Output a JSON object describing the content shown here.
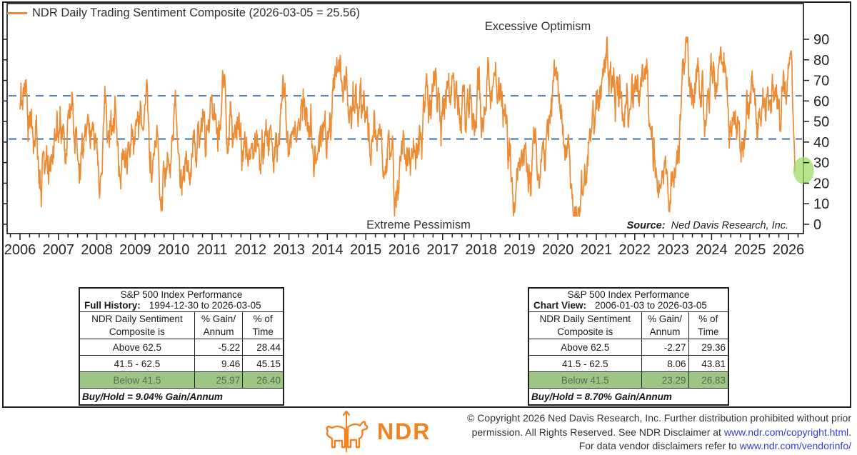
{
  "chart_data": {
    "type": "line",
    "legend_label": "NDR Daily Trading Sentiment Composite (2026-03-05 = 25.56)",
    "line_color": "#ED8B33",
    "annotations": {
      "top": "Excessive Optimism",
      "bottom": "Extreme Pessimism",
      "source_label": "Source:",
      "source_text": "Ned Davis Research, Inc."
    },
    "threshold_lines": {
      "values": [
        62.5,
        41.5
      ],
      "color": "#4878AD",
      "style": "dashed"
    },
    "x_axis": {
      "ticks": [
        2006,
        2007,
        2008,
        2009,
        2010,
        2011,
        2012,
        2013,
        2014,
        2015,
        2016,
        2017,
        2018,
        2019,
        2020,
        2021,
        2022,
        2023,
        2024,
        2025,
        2026
      ],
      "minor_tick_interval_years": 0.25
    },
    "y_axis": {
      "ticks": [
        0,
        10,
        20,
        30,
        40,
        50,
        60,
        70,
        80,
        90
      ],
      "labels_side": "right"
    },
    "last_point": {
      "date": "2026-03-05",
      "value": 25.56
    },
    "highlight_ellipse": {
      "color": "#A0DB66",
      "opacity": 0.75,
      "center_value": 26.2
    },
    "series_approximation": {
      "note": "dense daily mean-reverting sentiment series 2006-01-03 to 2026-03-05, range ~4-91; rendered from anchors + seeded noise",
      "seed": 20260305,
      "n_points": 2300,
      "t_start": 2006.0,
      "t_end": 2026.17,
      "mean_reversion": 0.05,
      "noise": 11,
      "min": 4,
      "max": 91,
      "anchors": [
        [
          2006.0,
          58
        ],
        [
          2006.4,
          50
        ],
        [
          2006.8,
          42
        ],
        [
          2007.2,
          55
        ],
        [
          2007.6,
          38
        ],
        [
          2008.0,
          42
        ],
        [
          2008.4,
          35
        ],
        [
          2008.8,
          30
        ],
        [
          2009.2,
          40
        ],
        [
          2009.6,
          55
        ],
        [
          2010.0,
          52
        ],
        [
          2010.4,
          38
        ],
        [
          2010.8,
          52
        ],
        [
          2011.2,
          55
        ],
        [
          2011.6,
          33
        ],
        [
          2012.0,
          55
        ],
        [
          2012.4,
          60
        ],
        [
          2012.8,
          45
        ],
        [
          2013.2,
          62
        ],
        [
          2013.6,
          52
        ],
        [
          2014.0,
          60
        ],
        [
          2014.4,
          48
        ],
        [
          2014.8,
          55
        ],
        [
          2015.2,
          45
        ],
        [
          2015.6,
          35
        ],
        [
          2016.0,
          42
        ],
        [
          2016.4,
          55
        ],
        [
          2016.8,
          55
        ],
        [
          2017.2,
          52
        ],
        [
          2017.6,
          58
        ],
        [
          2018.0,
          60
        ],
        [
          2018.4,
          45
        ],
        [
          2018.8,
          30
        ],
        [
          2019.2,
          45
        ],
        [
          2019.6,
          55
        ],
        [
          2020.0,
          55
        ],
        [
          2020.2,
          18
        ],
        [
          2020.5,
          40
        ],
        [
          2020.8,
          55
        ],
        [
          2021.2,
          60
        ],
        [
          2021.6,
          52
        ],
        [
          2022.0,
          42
        ],
        [
          2022.4,
          30
        ],
        [
          2022.8,
          38
        ],
        [
          2023.2,
          48
        ],
        [
          2023.6,
          58
        ],
        [
          2024.0,
          55
        ],
        [
          2024.4,
          50
        ],
        [
          2024.8,
          55
        ],
        [
          2025.0,
          50
        ],
        [
          2025.3,
          20
        ],
        [
          2025.6,
          48
        ],
        [
          2025.9,
          62
        ],
        [
          2026.05,
          55
        ],
        [
          2026.17,
          25.56
        ]
      ]
    }
  },
  "tables": [
    {
      "title": "S&P 500 Index Performance",
      "period_label": "Full History:",
      "period_value": "1994-12-30 to 2026-03-05",
      "col_headers": [
        "NDR Daily Sentiment\nComposite is",
        "% Gain/\nAnnum",
        "% of\nTime"
      ],
      "rows": [
        {
          "label": "Above 62.5",
          "gain": "-5.22",
          "time": "28.44",
          "highlight": false
        },
        {
          "label": "41.5 - 62.5",
          "gain": "9.46",
          "time": "45.15",
          "highlight": false
        },
        {
          "label": "Below 41.5",
          "gain": "25.97",
          "time": "26.40",
          "highlight": true
        }
      ],
      "footer": "Buy/Hold = 9.04% Gain/Annum"
    },
    {
      "title": "S&P 500 Index Performance",
      "period_label": "Chart View:",
      "period_value": "2006-01-03 to 2026-03-05",
      "col_headers": [
        "NDR Daily Sentiment\nComposite is",
        "% Gain/\nAnnum",
        "% of\nTime"
      ],
      "rows": [
        {
          "label": "Above 62.5",
          "gain": "-2.27",
          "time": "29.36",
          "highlight": false
        },
        {
          "label": "41.5 - 62.5",
          "gain": "8.06",
          "time": "43.81",
          "highlight": false
        },
        {
          "label": "Below 41.5",
          "gain": "23.29",
          "time": "26.83",
          "highlight": true
        }
      ],
      "footer": "Buy/Hold = 8.70% Gain/Annum"
    }
  ],
  "footer": {
    "logo_text": "NDR",
    "copyright": {
      "line1": "© Copyright 2026 Ned Davis Research, Inc. Further distribution prohibited without prior",
      "line2_prefix": "permission. All Rights Reserved. See NDR Disclaimer at ",
      "line2_link": "www.ndr.com/copyright.html",
      "line2_suffix": ".",
      "line3_prefix": "For data vendor disclaimers refer to ",
      "line3_link": "www.ndr.com/vendorinfo/"
    }
  }
}
